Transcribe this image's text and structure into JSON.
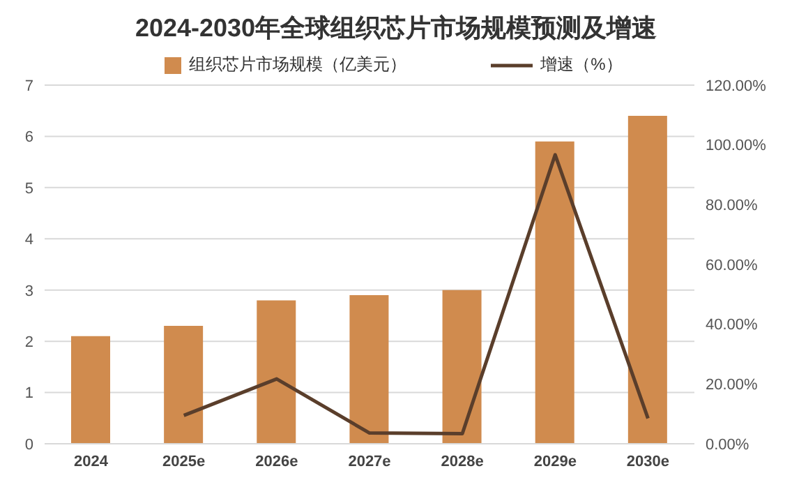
{
  "chart_data": {
    "type": "bar",
    "title": "2024-2030年全球组织芯片市场规模预测及增速",
    "categories": [
      "2024",
      "2025e",
      "2026e",
      "2027e",
      "2028e",
      "2029e",
      "2030e"
    ],
    "series": [
      {
        "name": "组织芯片市场规模（亿美元）",
        "color": "#d08b4e",
        "values": [
          2.1,
          2.3,
          2.8,
          2.9,
          3.0,
          5.9,
          6.4
        ]
      },
      {
        "name": "增速（%）",
        "type": "line",
        "axis": "y2",
        "color": "#5a3e2b",
        "values": [
          null,
          9.5,
          21.7,
          3.6,
          3.4,
          96.7,
          8.5
        ]
      }
    ],
    "ylim": [
      0,
      7
    ],
    "yticks": [
      0,
      1,
      2,
      3,
      4,
      5,
      6,
      7
    ],
    "y2lim": [
      0,
      120
    ],
    "y2ticks": [
      {
        "value": 0,
        "label": "0.00%"
      },
      {
        "value": 20,
        "label": "20.00%"
      },
      {
        "value": 40,
        "label": "40.00%"
      },
      {
        "value": 60,
        "label": "60.00%"
      },
      {
        "value": 80,
        "label": "80.00%"
      },
      {
        "value": 100,
        "label": "100.00%"
      },
      {
        "value": 120,
        "label": "120.00%"
      }
    ],
    "grid": "y",
    "legend": "top",
    "marker": "none",
    "line_style": "solid"
  }
}
